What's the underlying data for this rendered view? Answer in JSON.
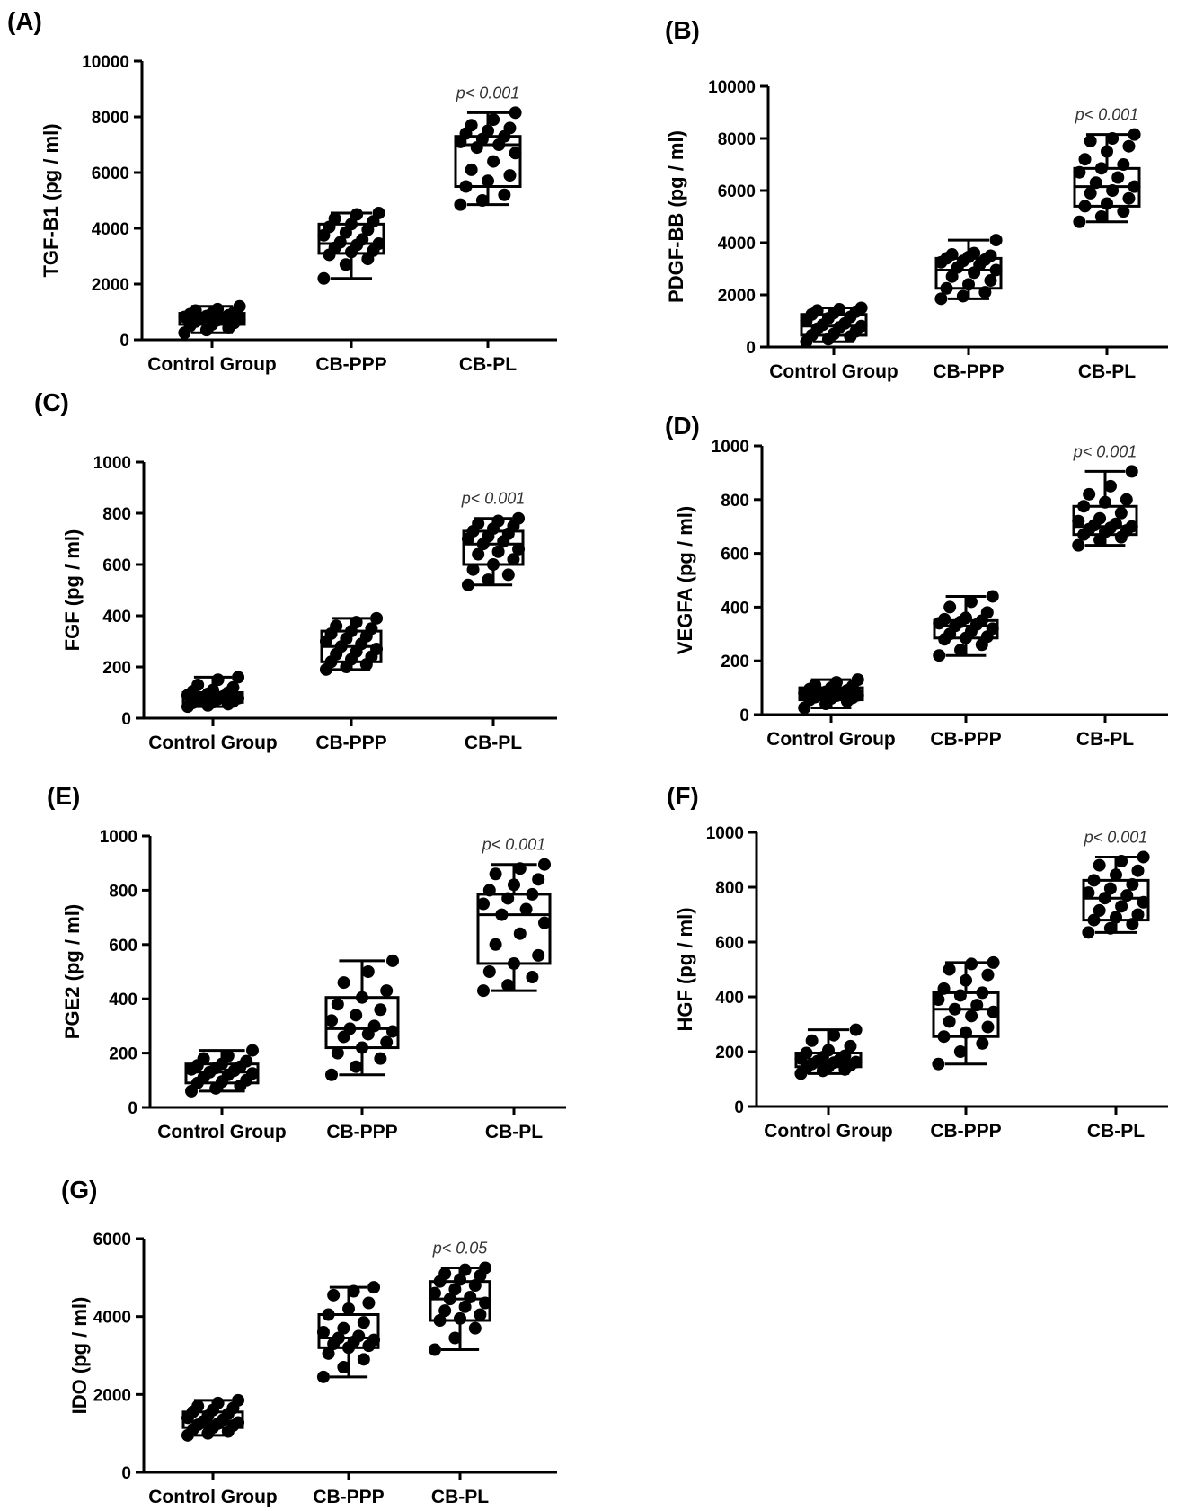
{
  "chart_data": [
    {
      "panel": "(A)",
      "type": "box",
      "ylabel": "TGF-B1 (pg / ml)",
      "ylim": [
        0,
        10000
      ],
      "yticks": [
        "0",
        "2000",
        "4000",
        "6000",
        "8000",
        "10000"
      ],
      "categories": [
        "Control Group",
        "CB-PPP",
        "CB-PL"
      ],
      "annotation": "p< 0.001",
      "boxes": [
        {
          "min": 250,
          "q1": 550,
          "median": 780,
          "q3": 950,
          "max": 1200,
          "points": [
            250,
            350,
            420,
            500,
            550,
            600,
            650,
            700,
            720,
            760,
            780,
            820,
            850,
            880,
            920,
            950,
            980,
            1050,
            1100,
            1200
          ]
        },
        {
          "min": 2200,
          "q1": 3100,
          "median": 3450,
          "q3": 4150,
          "max": 4550,
          "points": [
            2200,
            2700,
            2900,
            3050,
            3150,
            3200,
            3300,
            3400,
            3450,
            3500,
            3600,
            3750,
            3850,
            3950,
            4050,
            4150,
            4250,
            4350,
            4500,
            4550
          ]
        },
        {
          "min": 4850,
          "q1": 5500,
          "median": 7000,
          "q3": 7300,
          "max": 8150,
          "points": [
            4850,
            5000,
            5200,
            5500,
            5700,
            5900,
            6100,
            6400,
            6700,
            6900,
            7000,
            7100,
            7200,
            7300,
            7400,
            7500,
            7600,
            7700,
            7900,
            8150
          ]
        }
      ]
    },
    {
      "panel": "(B)",
      "type": "box",
      "ylabel": "PDGF-BB (pg / ml)",
      "ylim": [
        0,
        10000
      ],
      "yticks": [
        "0",
        "2000",
        "4000",
        "6000",
        "8000",
        "10000"
      ],
      "categories": [
        "Control Group",
        "CB-PPP",
        "CB-PL"
      ],
      "annotation": "p< 0.001",
      "boxes": [
        {
          "min": 200,
          "q1": 450,
          "median": 800,
          "q3": 1250,
          "max": 1500,
          "points": [
            200,
            300,
            400,
            450,
            500,
            600,
            700,
            750,
            800,
            850,
            900,
            1000,
            1100,
            1150,
            1250,
            1300,
            1350,
            1400,
            1450,
            1500
          ]
        },
        {
          "min": 1850,
          "q1": 2250,
          "median": 2950,
          "q3": 3400,
          "max": 4100,
          "points": [
            1850,
            1950,
            2100,
            2250,
            2400,
            2550,
            2700,
            2850,
            2950,
            3050,
            3150,
            3250,
            3300,
            3350,
            3400,
            3450,
            3500,
            3550,
            3600,
            4100
          ]
        },
        {
          "min": 4800,
          "q1": 5400,
          "median": 6150,
          "q3": 6850,
          "max": 8150,
          "points": [
            4800,
            5000,
            5200,
            5400,
            5500,
            5700,
            5900,
            6000,
            6150,
            6300,
            6500,
            6700,
            6850,
            7000,
            7200,
            7500,
            7700,
            7900,
            8000,
            8150
          ]
        }
      ]
    },
    {
      "panel": "(C)",
      "type": "box",
      "ylabel": "FGF (pg / ml)",
      "ylim": [
        0,
        1000
      ],
      "yticks": [
        "0",
        "200",
        "400",
        "600",
        "800",
        "1000"
      ],
      "categories": [
        "Control Group",
        "CB-PPP",
        "CB-PL"
      ],
      "annotation": "p< 0.001",
      "boxes": [
        {
          "min": 45,
          "q1": 62,
          "median": 80,
          "q3": 100,
          "max": 160,
          "points": [
            45,
            50,
            55,
            60,
            62,
            65,
            70,
            75,
            78,
            80,
            85,
            90,
            95,
            100,
            105,
            110,
            120,
            130,
            150,
            160
          ]
        },
        {
          "min": 190,
          "q1": 220,
          "median": 280,
          "q3": 340,
          "max": 390,
          "points": [
            190,
            200,
            210,
            220,
            230,
            240,
            250,
            260,
            270,
            280,
            290,
            300,
            310,
            320,
            330,
            340,
            350,
            360,
            375,
            390
          ]
        },
        {
          "min": 520,
          "q1": 600,
          "median": 680,
          "q3": 730,
          "max": 780,
          "points": [
            520,
            540,
            560,
            580,
            600,
            620,
            640,
            650,
            660,
            680,
            690,
            700,
            710,
            720,
            730,
            740,
            750,
            760,
            770,
            780
          ]
        }
      ]
    },
    {
      "panel": "(D)",
      "type": "box",
      "ylabel": "VEGFA (pg / ml)",
      "ylim": [
        0,
        1000
      ],
      "yticks": [
        "0",
        "200",
        "400",
        "600",
        "800",
        "1000"
      ],
      "categories": [
        "Control Group",
        "CB-PPP",
        "CB-PL"
      ],
      "annotation": "p< 0.001",
      "boxes": [
        {
          "min": 25,
          "q1": 55,
          "median": 75,
          "q3": 100,
          "max": 130,
          "points": [
            25,
            40,
            50,
            55,
            60,
            62,
            65,
            70,
            72,
            75,
            78,
            80,
            85,
            90,
            95,
            100,
            105,
            110,
            120,
            130
          ]
        },
        {
          "min": 220,
          "q1": 285,
          "median": 330,
          "q3": 350,
          "max": 440,
          "points": [
            220,
            240,
            260,
            280,
            285,
            290,
            300,
            310,
            320,
            330,
            335,
            340,
            345,
            350,
            355,
            360,
            380,
            400,
            420,
            440
          ]
        },
        {
          "min": 630,
          "q1": 670,
          "median": 700,
          "q3": 775,
          "max": 905,
          "points": [
            630,
            650,
            660,
            670,
            680,
            685,
            690,
            695,
            700,
            705,
            710,
            720,
            730,
            750,
            775,
            790,
            800,
            820,
            850,
            905
          ]
        }
      ]
    },
    {
      "panel": "(E)",
      "type": "box",
      "ylabel": "PGE2 (pg / ml)",
      "ylim": [
        0,
        1000
      ],
      "yticks": [
        "0",
        "200",
        "400",
        "600",
        "800",
        "1000"
      ],
      "categories": [
        "Control Group",
        "CB-PPP",
        "CB-PL"
      ],
      "annotation": "p< 0.001",
      "boxes": [
        {
          "min": 60,
          "q1": 90,
          "median": 130,
          "q3": 160,
          "max": 210,
          "points": [
            60,
            70,
            80,
            90,
            95,
            100,
            110,
            120,
            125,
            130,
            135,
            140,
            145,
            150,
            155,
            160,
            170,
            180,
            190,
            210
          ]
        },
        {
          "min": 120,
          "q1": 220,
          "median": 290,
          "q3": 405,
          "max": 540,
          "points": [
            120,
            150,
            180,
            200,
            220,
            240,
            260,
            270,
            280,
            290,
            300,
            320,
            340,
            360,
            380,
            405,
            430,
            460,
            500,
            540
          ]
        },
        {
          "min": 430,
          "q1": 530,
          "median": 710,
          "q3": 785,
          "max": 895,
          "points": [
            430,
            450,
            480,
            500,
            530,
            560,
            600,
            640,
            680,
            710,
            730,
            750,
            770,
            785,
            800,
            820,
            840,
            860,
            880,
            895
          ]
        }
      ]
    },
    {
      "panel": "(F)",
      "type": "box",
      "ylabel": "HGF (pg / ml)",
      "ylim": [
        0,
        1000
      ],
      "yticks": [
        "0",
        "200",
        "400",
        "600",
        "800",
        "1000"
      ],
      "categories": [
        "Control Group",
        "CB-PPP",
        "CB-PL"
      ],
      "annotation": "p< 0.001",
      "boxes": [
        {
          "min": 120,
          "q1": 145,
          "median": 165,
          "q3": 195,
          "max": 280,
          "points": [
            120,
            130,
            135,
            140,
            145,
            150,
            155,
            160,
            162,
            165,
            170,
            175,
            180,
            185,
            195,
            205,
            220,
            240,
            260,
            280
          ]
        },
        {
          "min": 155,
          "q1": 255,
          "median": 355,
          "q3": 415,
          "max": 525,
          "points": [
            155,
            200,
            230,
            255,
            270,
            290,
            310,
            330,
            345,
            355,
            370,
            390,
            405,
            415,
            430,
            460,
            480,
            500,
            520,
            525
          ]
        },
        {
          "min": 635,
          "q1": 680,
          "median": 760,
          "q3": 825,
          "max": 910,
          "points": [
            635,
            650,
            665,
            680,
            690,
            700,
            715,
            730,
            745,
            760,
            770,
            780,
            795,
            810,
            825,
            845,
            860,
            880,
            895,
            910
          ]
        }
      ]
    },
    {
      "panel": "(G)",
      "type": "box",
      "ylabel": "IDO (pg / ml)",
      "ylim": [
        0,
        6000
      ],
      "yticks": [
        "0",
        "2000",
        "4000",
        "6000"
      ],
      "categories": [
        "Control Group",
        "CB-PPP",
        "CB-PL"
      ],
      "annotation": "p< 0.05",
      "boxes": [
        {
          "min": 950,
          "q1": 1150,
          "median": 1300,
          "q3": 1550,
          "max": 1850,
          "points": [
            950,
            1000,
            1050,
            1100,
            1150,
            1200,
            1220,
            1250,
            1280,
            1300,
            1350,
            1400,
            1450,
            1500,
            1550,
            1600,
            1650,
            1700,
            1780,
            1850
          ]
        },
        {
          "min": 2450,
          "q1": 3200,
          "median": 3450,
          "q3": 4050,
          "max": 4750,
          "points": [
            2450,
            2700,
            2900,
            3050,
            3200,
            3250,
            3300,
            3350,
            3400,
            3450,
            3500,
            3600,
            3700,
            3850,
            4050,
            4200,
            4350,
            4550,
            4650,
            4750
          ]
        },
        {
          "min": 3150,
          "q1": 3900,
          "median": 4450,
          "q3": 4900,
          "max": 5250,
          "points": [
            3150,
            3450,
            3700,
            3900,
            3950,
            4050,
            4150,
            4250,
            4350,
            4450,
            4500,
            4600,
            4700,
            4800,
            4900,
            4950,
            5050,
            5100,
            5200,
            5250
          ]
        }
      ]
    }
  ]
}
